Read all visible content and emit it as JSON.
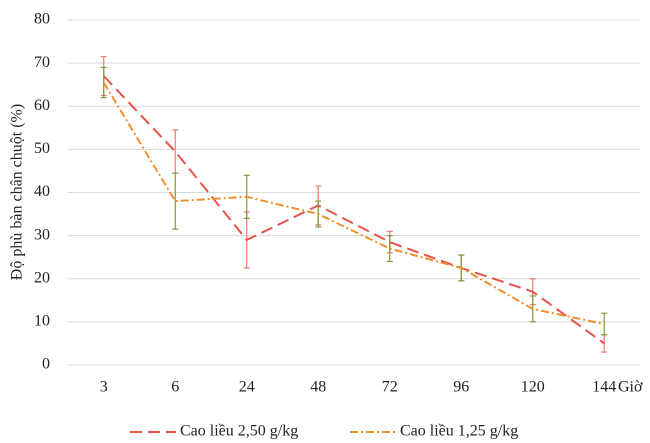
{
  "chart_data": {
    "type": "line",
    "y_label": "Độ phù bàn chân chuột (%)",
    "x_label": "Giờ",
    "categories": [
      "3",
      "6",
      "24",
      "48",
      "72",
      "96",
      "120",
      "144"
    ],
    "series": [
      {
        "name": "Cao liều 2,50 g/kg",
        "color": "#e8524a",
        "error_color": "#ee7a72",
        "dash": "12,6",
        "values": [
          67,
          49.5,
          29,
          37,
          28.5,
          22.5,
          17,
          5
        ],
        "errors": [
          4.5,
          5,
          6.5,
          4.5,
          2.5,
          3,
          3,
          2
        ]
      },
      {
        "name": "Cao liều 1,25 g/kg",
        "color": "#f0902c",
        "error_color": "#7f9a3c",
        "dash": "8,3,2,3",
        "values": [
          65.5,
          38,
          39,
          35,
          27,
          22.5,
          13,
          9.5
        ],
        "errors": [
          3.5,
          6.5,
          5,
          3,
          3,
          3,
          3,
          2.5
        ]
      }
    ],
    "ylim": [
      0,
      80
    ],
    "yticks": [
      0,
      10,
      20,
      30,
      40,
      50,
      60,
      70,
      80
    ],
    "grid": true
  }
}
